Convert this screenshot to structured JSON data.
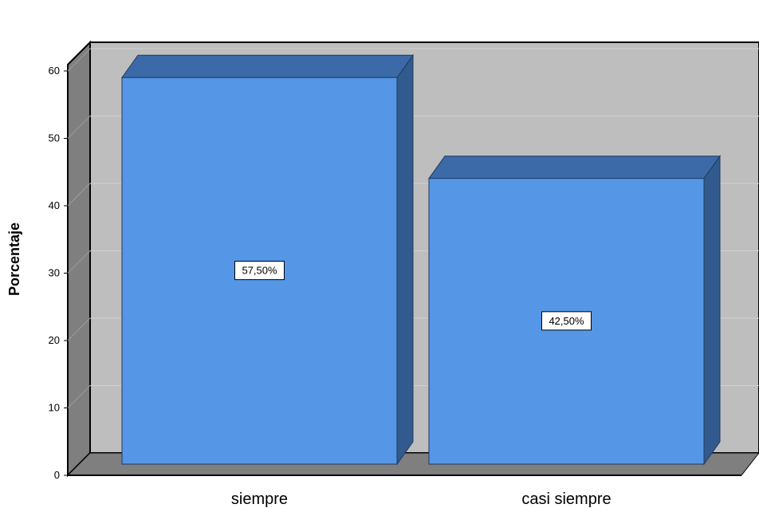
{
  "chart_data": {
    "type": "bar",
    "categories": [
      "siempre",
      "casi siempre"
    ],
    "values": [
      57.5,
      42.5
    ],
    "data_labels": [
      "57,50%",
      "42,50%"
    ],
    "title": "",
    "xlabel": "",
    "ylabel": "Porcentaje",
    "ylim": [
      0,
      60
    ],
    "yticks": [
      "0",
      "10",
      "20",
      "30",
      "40",
      "50",
      "60"
    ],
    "grid": true,
    "style": "3d",
    "legend": "none"
  },
  "colors": {
    "bar_front": "#5596E6",
    "bar_top": "#3C6AA8",
    "bar_side": "#325A8E",
    "wall_back": "#BEBEBE",
    "wall_side": "#7F7F7F",
    "floor": "#7F7F7F",
    "gridline": "#D0D0D0"
  }
}
